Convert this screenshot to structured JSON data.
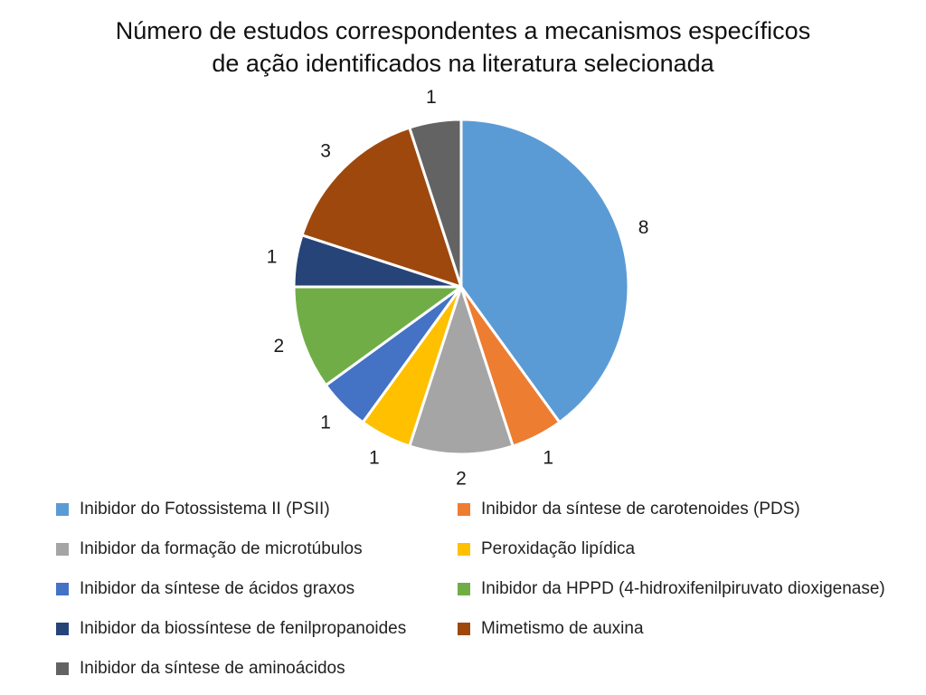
{
  "chart_data": {
    "type": "pie",
    "title_lines": [
      "Número de estudos correspondentes a mecanismos específicos",
      "de ação identificados na literatura selecionada"
    ],
    "slices": [
      {
        "label": "Inibidor do Fotossistema II (PSII)",
        "value": 8,
        "color": "#5B9BD5"
      },
      {
        "label": "Inibidor da síntese de carotenoides (PDS)",
        "value": 1,
        "color": "#ED7D31"
      },
      {
        "label": "Inibidor da formação de microtúbulos",
        "value": 2,
        "color": "#A5A5A5"
      },
      {
        "label": "Peroxidação lipídica",
        "value": 1,
        "color": "#FFC000"
      },
      {
        "label": "Inibidor da síntese de ácidos graxos",
        "value": 1,
        "color": "#4472C4"
      },
      {
        "label": "Inibidor da HPPD (4-hidroxifenilpiruvato dioxigenase)",
        "value": 2,
        "color": "#70AD47"
      },
      {
        "label": "Inibidor da biossíntese de fenilpropanoides",
        "value": 1,
        "color": "#264478"
      },
      {
        "label": "Mimetismo de auxina",
        "value": 3,
        "color": "#9E480E"
      },
      {
        "label": "Inibidor da síntese de aminoácidos",
        "value": 1,
        "color": "#636363"
      }
    ],
    "legend_placement": "bottom"
  }
}
